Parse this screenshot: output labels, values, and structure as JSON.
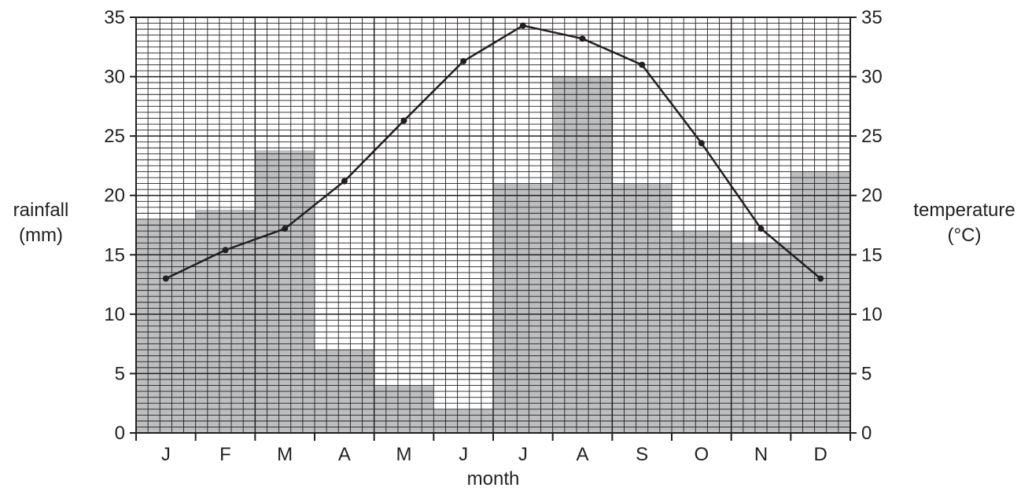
{
  "chart_data": {
    "type": "bar",
    "categories": [
      "J",
      "F",
      "M",
      "A",
      "M",
      "J",
      "J",
      "A",
      "S",
      "O",
      "N",
      "D"
    ],
    "series": [
      {
        "name": "rainfall",
        "chart_type": "bar",
        "axis": "left",
        "values": [
          18,
          18.8,
          23.8,
          7,
          4,
          2,
          21,
          30,
          21,
          17,
          16,
          22
        ]
      },
      {
        "name": "temperature",
        "chart_type": "line",
        "axis": "right",
        "values": [
          13,
          15.4,
          17.2,
          21.2,
          26.3,
          31.3,
          34.3,
          33.2,
          31,
          24.4,
          17.2,
          13
        ]
      }
    ],
    "xlabel": "month",
    "ylabel_left": [
      "rainfall",
      "(mm)"
    ],
    "ylabel_right": [
      "temperature",
      "(°C)"
    ],
    "ylim_left": [
      0,
      35
    ],
    "ylim_right": [
      0,
      35
    ],
    "yticks": [
      "0",
      "5",
      "10",
      "15",
      "20",
      "25",
      "30",
      "35"
    ],
    "grid": true,
    "colors": {
      "bars": "#bcbec0",
      "line": "#231f20",
      "grid": "#231f20",
      "background": "#ffffff"
    }
  }
}
